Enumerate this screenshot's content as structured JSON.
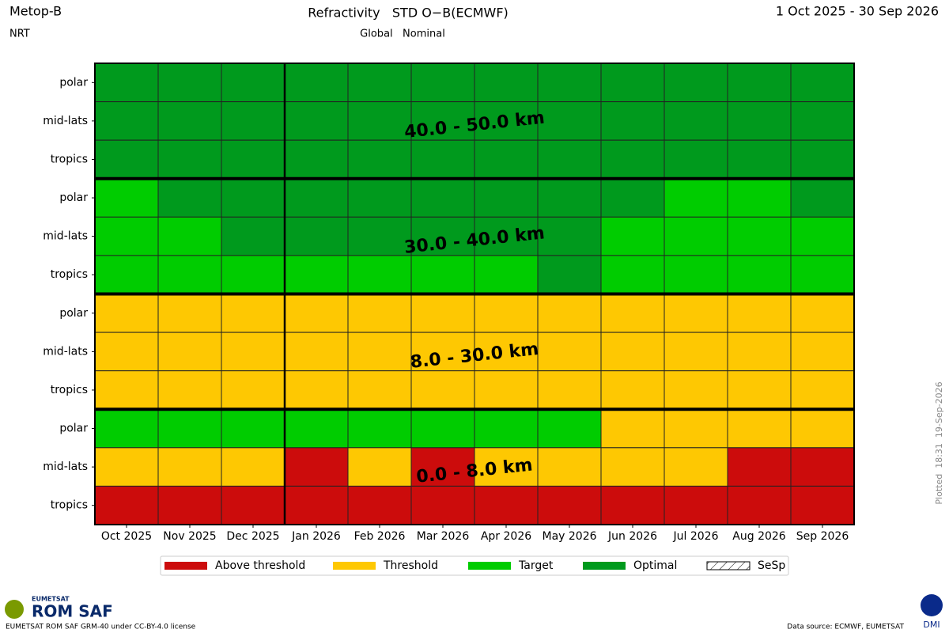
{
  "header": {
    "satellite": "Metop-B",
    "mode": "NRT",
    "period": "1 Oct 2025 - 30 Sep 2026",
    "plotted": "Plotted  18:31  19-Sep-2026"
  },
  "footer": {
    "license": "EUMETSAT ROM SAF GRM-40 under CC-BY-4.0 license",
    "source": "Data source: ECMWF, EUMETSAT",
    "logo_top": "EUMETSAT",
    "logo_main": "ROM SAF",
    "logo_right": "DMI"
  },
  "chart_data": {
    "type": "heatmap",
    "title": "Refractivity   STD O−B(ECMWF)",
    "subtitle": "Global   Nominal",
    "categories": [
      "Oct 2025",
      "Nov 2025",
      "Dec 2025",
      "Jan 2026",
      "Feb 2026",
      "Mar 2026",
      "Apr 2026",
      "May 2026",
      "Jun 2026",
      "Jul 2026",
      "Aug 2026",
      "Sep 2026"
    ],
    "legend": [
      {
        "name": "Above threshold",
        "color": "#cc0c0c"
      },
      {
        "name": "Threshold",
        "color": "#fec802"
      },
      {
        "name": "Target",
        "color": "#00cc00"
      },
      {
        "name": "Optimal",
        "color": "#009a1d"
      },
      {
        "name": "SeSp",
        "color": "#ffffff",
        "hatch": true
      }
    ],
    "bands": [
      {
        "label": "40.0 - 50.0 km",
        "rows": [
          {
            "name": "polar",
            "values": [
              3,
              3,
              3,
              3,
              3,
              3,
              3,
              3,
              3,
              3,
              3,
              3
            ]
          },
          {
            "name": "mid-lats",
            "values": [
              3,
              3,
              3,
              3,
              3,
              3,
              3,
              3,
              3,
              3,
              3,
              3
            ]
          },
          {
            "name": "tropics",
            "values": [
              3,
              3,
              3,
              3,
              3,
              3,
              3,
              3,
              3,
              3,
              3,
              3
            ]
          }
        ]
      },
      {
        "label": "30.0 - 40.0 km",
        "rows": [
          {
            "name": "polar",
            "values": [
              2,
              3,
              3,
              3,
              3,
              3,
              3,
              3,
              3,
              2,
              2,
              3
            ]
          },
          {
            "name": "mid-lats",
            "values": [
              2,
              2,
              3,
              3,
              3,
              3,
              3,
              3,
              2,
              2,
              2,
              2
            ]
          },
          {
            "name": "tropics",
            "values": [
              2,
              2,
              2,
              2,
              2,
              2,
              2,
              3,
              2,
              2,
              2,
              2
            ]
          }
        ]
      },
      {
        "label": "8.0 - 30.0 km",
        "rows": [
          {
            "name": "polar",
            "values": [
              1,
              1,
              1,
              1,
              1,
              1,
              1,
              1,
              1,
              1,
              1,
              1
            ]
          },
          {
            "name": "mid-lats",
            "values": [
              1,
              1,
              1,
              1,
              1,
              1,
              1,
              1,
              1,
              1,
              1,
              1
            ]
          },
          {
            "name": "tropics",
            "values": [
              1,
              1,
              1,
              1,
              1,
              1,
              1,
              1,
              1,
              1,
              1,
              1
            ]
          }
        ]
      },
      {
        "label": "0.0 - 8.0 km",
        "rows": [
          {
            "name": "polar",
            "values": [
              2,
              2,
              2,
              2,
              2,
              2,
              2,
              2,
              1,
              1,
              1,
              1
            ]
          },
          {
            "name": "mid-lats",
            "values": [
              1,
              1,
              1,
              0,
              1,
              0,
              1,
              1,
              1,
              1,
              0,
              0
            ]
          },
          {
            "name": "tropics",
            "values": [
              0,
              0,
              0,
              0,
              0,
              0,
              0,
              0,
              0,
              0,
              0,
              0
            ]
          }
        ]
      }
    ]
  }
}
